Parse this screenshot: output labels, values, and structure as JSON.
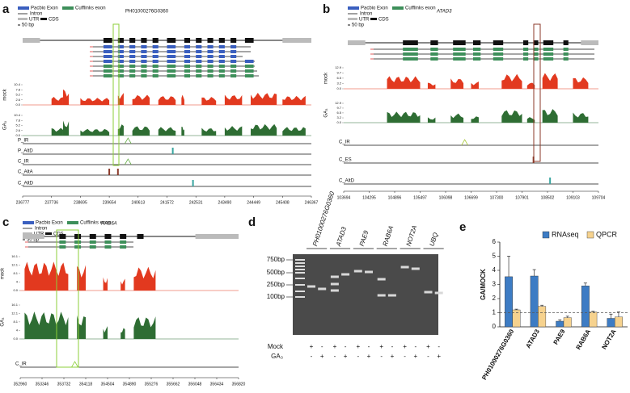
{
  "panels": {
    "a": {
      "letter": "a",
      "legend": [
        "Pacbio Exon",
        "Cufflinks exon",
        "Intron",
        "UTR",
        "CDS",
        "50 bp"
      ],
      "gene": "PH01000276G0360",
      "tracks": [
        {
          "name": "mock",
          "ylim": [
            0,
            10.4
          ],
          "yticks": [
            10.4,
            7.8,
            5.2,
            2.6,
            {
              "value": 0,
              "label": "0.0"
            }
          ]
        },
        {
          "name": "GA₃",
          "ylim": [
            0,
            10.4
          ],
          "yticks": [
            10.4,
            7.8,
            5.2,
            2.6,
            {
              "value": 0,
              "label": "0.0"
            }
          ]
        }
      ],
      "events": [
        "P_IR",
        "P_AltD",
        "C_IR",
        "C_AltA",
        "C_AltD"
      ],
      "xticks": [
        236777,
        237736,
        238695,
        239654,
        240613,
        241572,
        242531,
        243490,
        244449,
        245408,
        246367
      ]
    },
    "b": {
      "letter": "b",
      "legend": [
        "Pacbio Exon",
        "Cufflinks exon",
        "Intron",
        "UTR",
        "CDS",
        "50 bp"
      ],
      "gene": "ATAD3",
      "tracks": [
        {
          "name": "mock",
          "ylim": [
            0,
            12.9
          ],
          "yticks": [
            12.9,
            9.7,
            6.5,
            3.2,
            {
              "value": 0,
              "label": "0.0"
            }
          ]
        },
        {
          "name": "GA₃",
          "ylim": [
            0,
            12.9
          ],
          "yticks": [
            12.9,
            9.7,
            6.5,
            3.2,
            {
              "value": 0,
              "label": "0.0"
            }
          ]
        }
      ],
      "events": [
        "C_IR",
        "C_ES",
        "C_AltD"
      ],
      "xticks": [
        103694,
        104295,
        104896,
        105497,
        106098,
        106699,
        107300,
        107901,
        108502,
        109103,
        109704
      ]
    },
    "c": {
      "letter": "c",
      "legend": [
        "Pacbio Exon",
        "Cufflinks exon",
        "Intron",
        "UTR",
        "CDS",
        "50 bp"
      ],
      "gene": "RAB6A",
      "tracks": [
        {
          "name": "mock",
          "ylim": [
            0,
            16.1
          ],
          "yticks": [
            16.1,
            12.1,
            8.1,
            4.0,
            {
              "value": 0,
              "label": "0.0"
            }
          ]
        },
        {
          "name": "GA₃",
          "ylim": [
            0,
            16.1
          ],
          "yticks": [
            16.1,
            12.1,
            8.1,
            4.0,
            {
              "value": 0,
              "label": "0.0"
            }
          ]
        }
      ],
      "events": [
        "C_IR"
      ],
      "xticks": [
        352960,
        353346,
        353732,
        354118,
        354504,
        354890,
        355276,
        355662,
        356048,
        356434,
        356820
      ]
    },
    "d": {
      "letter": "d",
      "lanes": [
        "PH01000276G0360",
        "ATAD3",
        "PAE9",
        "RAB6A",
        "NOT2A",
        "UBQ"
      ],
      "ladder": [
        "750bp",
        "500bp",
        "250bp",
        "100bp"
      ],
      "rows": [
        "Mock",
        "GA₃"
      ],
      "mock_signs": [
        "+",
        "-",
        "+",
        "-",
        "+",
        "-",
        "+",
        "-",
        "+",
        "-",
        "+",
        "-"
      ],
      "ga_signs": [
        "-",
        "+",
        "-",
        "+",
        "-",
        "+",
        "-",
        "+",
        "-",
        "+",
        "-",
        "+"
      ]
    }
  },
  "chart_data": {
    "type": "bar",
    "panel_label": "e",
    "y_label": "GA/MOCK",
    "categories": [
      "PH01000276G0360",
      "ATAD3",
      "PAE9",
      "RAB6A",
      "NOT2A"
    ],
    "series": [
      {
        "name": "RNAseq",
        "color": "#3d7cc4",
        "values": [
          3.55,
          3.6,
          0.4,
          2.9,
          0.6
        ],
        "errors": [
          1.45,
          0.45,
          0.1,
          0.2,
          0.3
        ]
      },
      {
        "name": "QPCR",
        "color": "#f6d28e",
        "values": [
          1.2,
          1.45,
          0.65,
          1.05,
          0.7
        ],
        "errors": [
          0.05,
          0.08,
          0.1,
          0.05,
          0.35
        ]
      }
    ],
    "ylim": [
      0,
      6
    ],
    "yticks": [
      0,
      1,
      2,
      3,
      4,
      5,
      6
    ],
    "reference_line": 1,
    "legend": "top-right"
  }
}
